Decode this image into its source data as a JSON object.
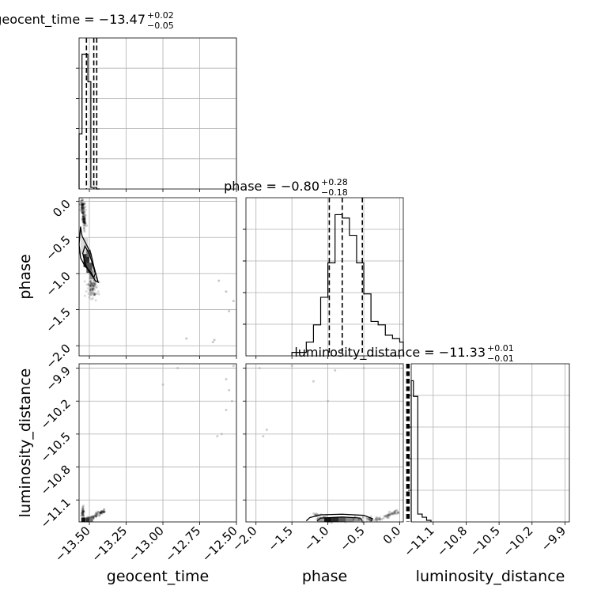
{
  "chart_data": {
    "type": "corner",
    "parameters": [
      "geocent_time",
      "phase",
      "luminosity_distance"
    ],
    "axis_labels": {
      "geocent_time": "geocent_time",
      "phase": "phase",
      "luminosity_distance": "luminosity_distance"
    },
    "ranges": {
      "geocent_time": [
        -13.57,
        -12.5
      ],
      "phase": [
        -2.14,
        0.05
      ],
      "luminosity_distance": [
        -11.3,
        -9.86
      ]
    },
    "ticks": {
      "geocent_time": {
        "values": [
          -13.5,
          -13.25,
          -13.0,
          -12.75,
          -12.5
        ],
        "labels": [
          "−13.50",
          "−13.25",
          "−13.00",
          "−12.75",
          "−12.50"
        ]
      },
      "phase": {
        "values": [
          -2.0,
          -1.5,
          -1.0,
          -0.5,
          0.0
        ],
        "labels": [
          "−2.0",
          "−1.5",
          "−1.0",
          "−0.5",
          "0.0"
        ]
      },
      "luminosity_distance": {
        "values": [
          -11.1,
          -10.8,
          -10.5,
          -10.2,
          -9.9
        ],
        "labels": [
          "−11.1",
          "−10.8",
          "−10.5",
          "−10.2",
          "−9.9"
        ]
      }
    },
    "titles": [
      {
        "param": "geocent_time",
        "name": "geocent_time",
        "value": "−13.47",
        "plus": "+0.02",
        "minus": "−0.05"
      },
      {
        "param": "phase",
        "name": "phase",
        "value": "−0.80",
        "plus": "+0.28",
        "minus": "−0.18"
      },
      {
        "param": "luminosity_distance",
        "name": "luminosity_distance",
        "value": "−11.33",
        "plus": "+0.01",
        "minus": "−0.01"
      }
    ],
    "histograms": {
      "geocent_time": {
        "bin_edges": [
          -13.57,
          -13.55,
          -13.53,
          -13.51,
          -13.49,
          -13.47,
          -13.45,
          -13.43
        ],
        "counts": [
          1.8,
          4.4,
          4.4,
          3.5,
          0.05,
          0.05,
          0.0
        ],
        "quantiles": [
          -13.52,
          -13.47,
          -13.45
        ]
      },
      "phase": {
        "bin_edges": [
          -1.5,
          -1.4,
          -1.3,
          -1.2,
          -1.1,
          -1.0,
          -0.9,
          -0.8,
          -0.7,
          -0.6,
          -0.5,
          -0.4,
          -0.3,
          -0.2,
          -0.1,
          0.0,
          0.05
        ],
        "counts": [
          0.1,
          0.1,
          0.4,
          0.9,
          1.7,
          2.7,
          4.1,
          4.0,
          3.5,
          2.7,
          1.8,
          1.0,
          0.9,
          0.6,
          0.5,
          0.4
        ],
        "quantiles": [
          -0.98,
          -0.8,
          -0.52
        ]
      },
      "luminosity_distance": {
        "bin_edges": [
          -11.3,
          -11.28,
          -11.24,
          -11.2,
          -11.16,
          -11.12
        ],
        "counts": [
          4.5,
          4.0,
          0.25,
          0.15,
          0.05
        ],
        "quantiles": [
          -11.34,
          -11.33,
          -11.32
        ]
      }
    },
    "pairs": [
      {
        "x": "geocent_time",
        "y": "phase"
      },
      {
        "x": "geocent_time",
        "y": "luminosity_distance"
      },
      {
        "x": "phase",
        "y": "luminosity_distance"
      }
    ],
    "grid": true
  }
}
